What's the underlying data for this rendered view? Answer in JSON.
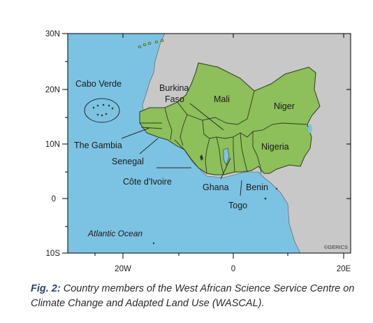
{
  "map": {
    "lat_ticks": [
      "30N",
      "20N",
      "10N",
      "0",
      "10S"
    ],
    "lon_ticks": [
      "20W",
      "0",
      "20E"
    ],
    "colors": {
      "ocean": "#7cc3e3",
      "land_other": "#c8c8c8",
      "member_countries": "#8dbf5a",
      "borders": "#2f3a22"
    },
    "labels": {
      "cabo_verde": "Cabo Verde",
      "the_gambia": "The Gambia",
      "senegal": "Senegal",
      "cote_divoire": "Côte d'Ivoire",
      "burkina_faso_line1": "Burkina",
      "burkina_faso_line2": "Faso",
      "mali": "Mali",
      "niger": "Niger",
      "nigeria": "Nigeria",
      "ghana": "Ghana",
      "benin": "Benin",
      "togo": "Togo",
      "atlantic_ocean": "Atlantic Ocean",
      "credit": "©GERICS"
    }
  },
  "caption": {
    "label": "Fig. 2:",
    "text": " Country members of the West African Science Service Centre on Climate Change and Adapted Land Use (WASCAL)."
  }
}
